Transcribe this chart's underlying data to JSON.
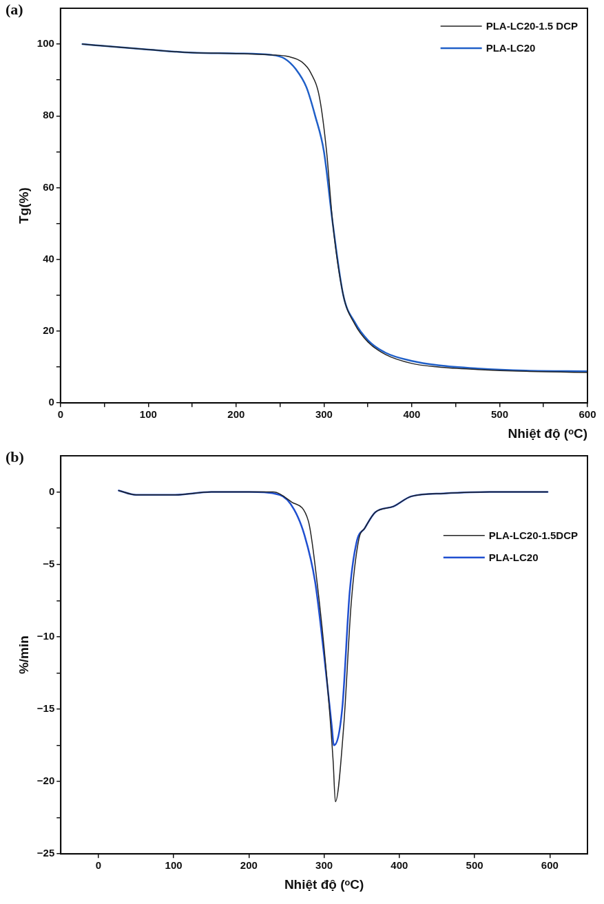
{
  "chart_data": [
    {
      "type": "line",
      "title": "(a)",
      "xlabel": "Nhiệt độ (ᵒC)",
      "ylabel": "Tg(%)",
      "xlim": [
        0,
        600
      ],
      "ylim": [
        0,
        110
      ],
      "xticks": [
        0,
        {
          "value": 50,
          "label": null
        },
        100,
        {
          "value": 150,
          "label": null
        },
        200,
        {
          "value": 250,
          "label": null
        },
        300,
        {
          "value": 350,
          "label": null
        },
        400,
        {
          "value": 450,
          "label": null
        },
        500,
        {
          "value": 550,
          "label": null
        },
        600
      ],
      "yticks": [
        0,
        {
          "value": 10,
          "label": null
        },
        20,
        {
          "value": 30,
          "label": null
        },
        40,
        {
          "value": 50,
          "label": null
        },
        60,
        {
          "value": 70,
          "label": null
        },
        80,
        {
          "value": 90,
          "label": null
        },
        100
      ],
      "grid": false,
      "legend": "top right",
      "marker": "none",
      "line_style": "solid",
      "series": [
        {
          "name": "PLA-LC20-1.5 DCP",
          "color": "#222222",
          "x": [
            25,
            50,
            100,
            150,
            200,
            240,
            260,
            275,
            285,
            295,
            303,
            310,
            322,
            335,
            350,
            370,
            400,
            430,
            475,
            530,
            600
          ],
          "values": [
            100,
            99.5,
            98.5,
            97.6,
            97.4,
            97,
            96.5,
            95,
            92,
            85,
            70,
            50,
            30,
            22,
            17,
            13.5,
            11,
            10,
            9.3,
            8.8,
            8.5
          ]
        },
        {
          "name": "PLA-LC20",
          "color": "#1f5fc8",
          "x": [
            25,
            50,
            100,
            150,
            200,
            240,
            255,
            268,
            280,
            290,
            300,
            310,
            322,
            335,
            350,
            370,
            400,
            430,
            475,
            530,
            600
          ],
          "values": [
            100,
            99.5,
            98.5,
            97.6,
            97.4,
            97,
            96,
            93,
            88,
            80,
            70,
            50,
            30,
            22.5,
            17.5,
            14,
            11.7,
            10.5,
            9.6,
            9,
            8.8
          ]
        }
      ]
    },
    {
      "type": "line",
      "title": "(b)",
      "xlabel": "Nhiệt độ (ᵒC)",
      "ylabel": "%/min",
      "xlim": [
        -50,
        650
      ],
      "ylim": [
        -25,
        2.5
      ],
      "xticks": [
        0,
        100,
        200,
        300,
        400,
        500,
        600
      ],
      "yticks": [
        -25,
        {
          "value": -22.5,
          "label": null
        },
        -20,
        {
          "value": -17.5,
          "label": null
        },
        -15,
        {
          "value": -12.5,
          "label": null
        },
        -10,
        {
          "value": -7.5,
          "label": null
        },
        -5,
        {
          "value": -2.5,
          "label": null
        },
        0
      ],
      "grid": false,
      "legend": "right",
      "marker": "none",
      "line_style": "solid",
      "series": [
        {
          "name": "PLA-LC20-1.5DCP",
          "color": "#222222",
          "x": [
            27,
            50,
            100,
            150,
            200,
            232,
            257,
            279,
            291,
            303,
            312,
            315,
            326,
            336,
            346,
            354,
            368,
            392,
            416,
            459,
            520,
            597
          ],
          "values": [
            0.1,
            -0.2,
            -0.2,
            0,
            0,
            0,
            -0.7,
            -2,
            -6.4,
            -12.5,
            -18.6,
            -21.4,
            -16.2,
            -7.7,
            -3.3,
            -2.5,
            -1.4,
            -1,
            -0.3,
            -0.1,
            0,
            0
          ]
        },
        {
          "name": "PLA-LC20",
          "color": "#1f4fd0",
          "x": [
            27,
            50,
            100,
            150,
            200,
            241,
            260,
            274,
            288,
            300,
            310,
            313,
            324,
            334,
            343,
            354,
            368,
            392,
            416,
            459,
            520,
            597
          ],
          "values": [
            0.1,
            -0.2,
            -0.2,
            0,
            0,
            -0.2,
            -1.2,
            -3,
            -6.2,
            -11.3,
            -16.1,
            -17.5,
            -15,
            -6.9,
            -3.5,
            -2.5,
            -1.4,
            -1,
            -0.3,
            -0.1,
            0,
            0
          ]
        }
      ]
    }
  ]
}
